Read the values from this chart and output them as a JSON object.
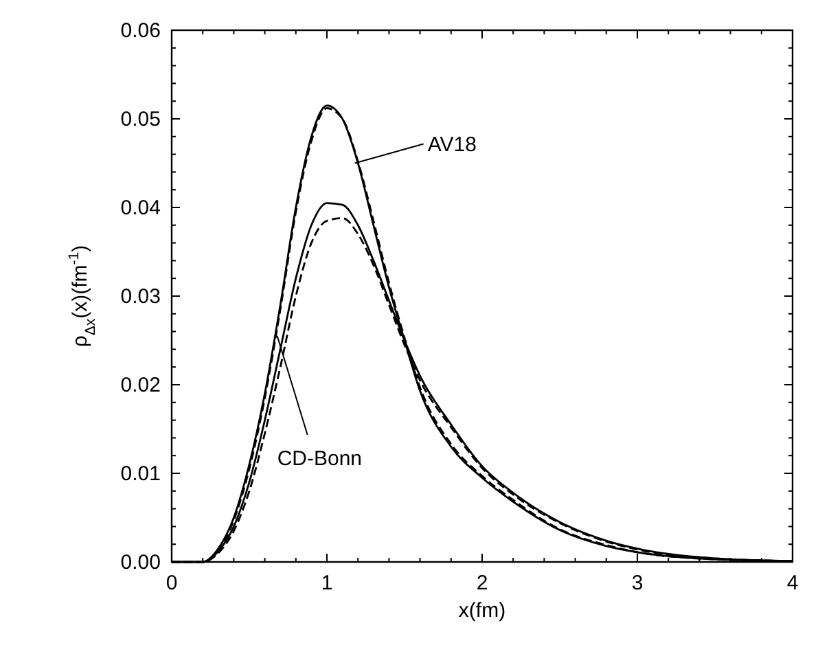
{
  "chart_data": {
    "type": "line",
    "xlabel": "x(fm)",
    "ylabel": "ρ$_{Δx}$(x)(fm$^{-1}$)",
    "x": [
      0,
      0.2,
      0.3,
      0.4,
      0.5,
      0.6,
      0.7,
      0.8,
      0.9,
      1.0,
      1.1,
      1.2,
      1.3,
      1.4,
      1.5,
      1.6,
      1.8,
      2.0,
      2.2,
      2.5,
      2.8,
      3.0,
      3.5,
      4.0
    ],
    "series": [
      {
        "color": "#000000",
        "line_style": "solid",
        "values": [
          0,
          0,
          0.0015,
          0.005,
          0.011,
          0.019,
          0.029,
          0.04,
          0.048,
          0.0515,
          0.05,
          0.045,
          0.038,
          0.031,
          0.025,
          0.0193,
          0.013,
          0.0095,
          0.0068,
          0.0036,
          0.0018,
          0.0011,
          0.0003,
          0.0001
        ]
      },
      {
        "color": "#000000",
        "line_style": "dashed",
        "values": [
          0,
          0,
          0.0013,
          0.0047,
          0.0105,
          0.0185,
          0.0285,
          0.0395,
          0.0475,
          0.0512,
          0.05,
          0.0452,
          0.0385,
          0.0315,
          0.0253,
          0.0197,
          0.0133,
          0.0097,
          0.007,
          0.0037,
          0.0019,
          0.0011,
          0.0003,
          0.0001
        ]
      },
      {
        "color": "#000000",
        "line_style": "solid",
        "values": [
          0,
          0,
          0.0012,
          0.004,
          0.009,
          0.016,
          0.024,
          0.032,
          0.038,
          0.0405,
          0.0403,
          0.038,
          0.034,
          0.0295,
          0.025,
          0.021,
          0.0155,
          0.0108,
          0.0078,
          0.0045,
          0.0024,
          0.0015,
          0.0004,
          0.0001
        ]
      },
      {
        "color": "#000000",
        "line_style": "dashed",
        "values": [
          0,
          0,
          0.001,
          0.0035,
          0.008,
          0.0145,
          0.022,
          0.03,
          0.036,
          0.0385,
          0.0388,
          0.037,
          0.0335,
          0.029,
          0.0245,
          0.0205,
          0.0152,
          0.0106,
          0.0076,
          0.0044,
          0.0023,
          0.0014,
          0.0004,
          0.0001
        ]
      }
    ],
    "xlim": [
      0,
      4
    ],
    "xticks": [
      0,
      {
        "value": 0.2,
        "label": null
      },
      {
        "value": 0.4,
        "label": null
      },
      {
        "value": 0.6,
        "label": null
      },
      {
        "value": 0.8,
        "label": null
      },
      1,
      {
        "value": 1.2,
        "label": null
      },
      {
        "value": 1.4,
        "label": null
      },
      {
        "value": 1.6,
        "label": null
      },
      {
        "value": 1.8,
        "label": null
      },
      2,
      {
        "value": 2.2,
        "label": null
      },
      {
        "value": 2.4,
        "label": null
      },
      {
        "value": 2.6,
        "label": null
      },
      {
        "value": 2.8,
        "label": null
      },
      3,
      {
        "value": 3.2,
        "label": null
      },
      {
        "value": 3.4,
        "label": null
      },
      {
        "value": 3.6,
        "label": null
      },
      {
        "value": 3.8,
        "label": null
      },
      4
    ],
    "ylim": [
      0,
      0.06
    ],
    "yticks": [
      {
        "value": 0,
        "label": "0.00"
      },
      {
        "value": 0.002,
        "label": null
      },
      {
        "value": 0.004,
        "label": null
      },
      {
        "value": 0.006,
        "label": null
      },
      {
        "value": 0.008,
        "label": null
      },
      0.01,
      {
        "value": 0.012,
        "label": null
      },
      {
        "value": 0.014,
        "label": null
      },
      {
        "value": 0.016,
        "label": null
      },
      {
        "value": 0.018,
        "label": null
      },
      0.02,
      {
        "value": 0.022,
        "label": null
      },
      {
        "value": 0.024,
        "label": null
      },
      {
        "value": 0.026,
        "label": null
      },
      {
        "value": 0.028,
        "label": null
      },
      0.03,
      {
        "value": 0.032,
        "label": null
      },
      {
        "value": 0.034,
        "label": null
      },
      {
        "value": 0.036,
        "label": null
      },
      {
        "value": 0.038,
        "label": null
      },
      0.04,
      {
        "value": 0.042,
        "label": null
      },
      {
        "value": 0.044,
        "label": null
      },
      {
        "value": 0.046,
        "label": null
      },
      {
        "value": 0.048,
        "label": null
      },
      0.05,
      {
        "value": 0.052,
        "label": null
      },
      {
        "value": 0.054,
        "label": null
      },
      {
        "value": 0.056,
        "label": null
      },
      {
        "value": 0.058,
        "label": null
      },
      0.06
    ],
    "annotations": [
      {
        "text": "AV18",
        "x": 1.18,
        "y": 0.045
      },
      {
        "text": "CD-Bonn",
        "x": 0.68,
        "y": 0.0255
      }
    ],
    "grid": false
  }
}
